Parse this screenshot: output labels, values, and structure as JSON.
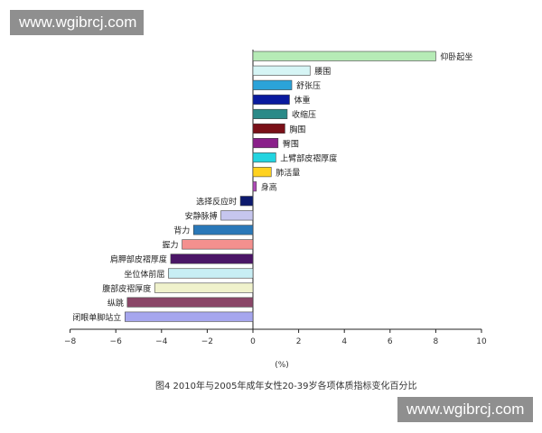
{
  "watermarks": [
    "www.wgibrcj.com",
    "www.wgibrcj.com"
  ],
  "caption": "图4    2010年与2005年成年女性20-39岁各项体质指标变化百分比",
  "chart_data": {
    "type": "bar",
    "orientation": "horizontal",
    "xlabel": "(%)",
    "xlim": [
      -8,
      10
    ],
    "xticks": [
      -8,
      -6,
      -4,
      -2,
      0,
      2,
      4,
      6,
      8,
      10
    ],
    "grid": false,
    "legend": "none",
    "categories": [
      "仰卧起坐",
      "腰围",
      "舒张压",
      "体重",
      "收缩压",
      "胸围",
      "臀围",
      "上臂部皮褶厚度",
      "肺活量",
      "身高",
      "选择反应时",
      "安静脉搏",
      "背力",
      "握力",
      "肩胛部皮褶厚度",
      "坐位体前屈",
      "腹部皮褶厚度",
      "纵跳",
      "闭眼单脚站立"
    ],
    "values": [
      8.0,
      2.5,
      1.7,
      1.6,
      1.5,
      1.4,
      1.1,
      1.0,
      0.8,
      0.15,
      -0.55,
      -1.4,
      -2.6,
      -3.1,
      -3.6,
      -3.7,
      -4.3,
      -5.5,
      -5.6
    ],
    "colors": [
      "#b6ebb6",
      "#d6f5f5",
      "#2ba3d9",
      "#0a1a9e",
      "#2a8a88",
      "#7a1018",
      "#8a1f8a",
      "#22d4e0",
      "#ffd21f",
      "#b04ab8",
      "#0d1a6e",
      "#c6c6ee",
      "#2a78b8",
      "#f4908e",
      "#4a1566",
      "#c8eef4",
      "#f0f2cc",
      "#8a4668",
      "#a6a6ee"
    ]
  }
}
